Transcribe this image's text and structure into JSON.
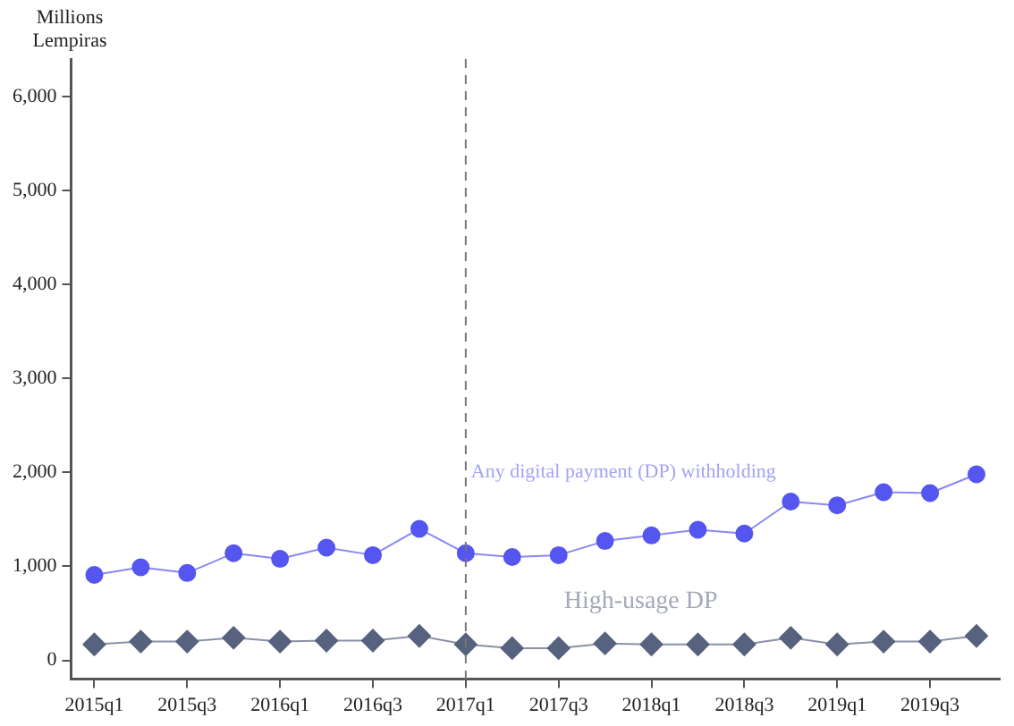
{
  "chart_data": {
    "type": "line",
    "ylabel": "Millions Lempiras",
    "categories": [
      "2015q1",
      null,
      "2015q3",
      null,
      "2016q1",
      null,
      "2016q3",
      null,
      "2017q1",
      null,
      "2017q3",
      null,
      "2018q1",
      null,
      "2018q3",
      null,
      "2019q1",
      null,
      "2019q3",
      null
    ],
    "series": [
      {
        "color": "#5555f0",
        "marker": "circle",
        "values": [
          910,
          990,
          930,
          1140,
          1080,
          1200,
          1120,
          1400,
          1140,
          1100,
          1120,
          1270,
          1330,
          1390,
          1350,
          1690,
          1650,
          1790,
          1780,
          1980
        ]
      },
      {
        "color": "#56627e",
        "marker": "diamond",
        "values": [
          170,
          200,
          200,
          240,
          200,
          210,
          210,
          260,
          170,
          130,
          130,
          180,
          170,
          170,
          170,
          240,
          170,
          200,
          200,
          260
        ]
      }
    ],
    "ylim": [
      -200,
      6400
    ],
    "yticks": [
      0,
      {
        "value": 1000,
        "label": "1,000"
      },
      {
        "value": 2000,
        "label": "2,000"
      },
      {
        "value": 3000,
        "label": "3,000"
      },
      {
        "value": 4000,
        "label": "4,000"
      },
      {
        "value": 5000,
        "label": "5,000"
      },
      {
        "value": 6000,
        "label": "6,000"
      }
    ],
    "ref_lines": [
      {
        "axis": "x",
        "value": "2017q1",
        "color": "#777777",
        "line_style": "dashed"
      }
    ],
    "annotations": [
      {
        "text": "Any digital payment (DP) withholding",
        "x": "2017q1",
        "y": 2000
      },
      "High-usage DP"
    ],
    "grid": false,
    "legend": false
  }
}
